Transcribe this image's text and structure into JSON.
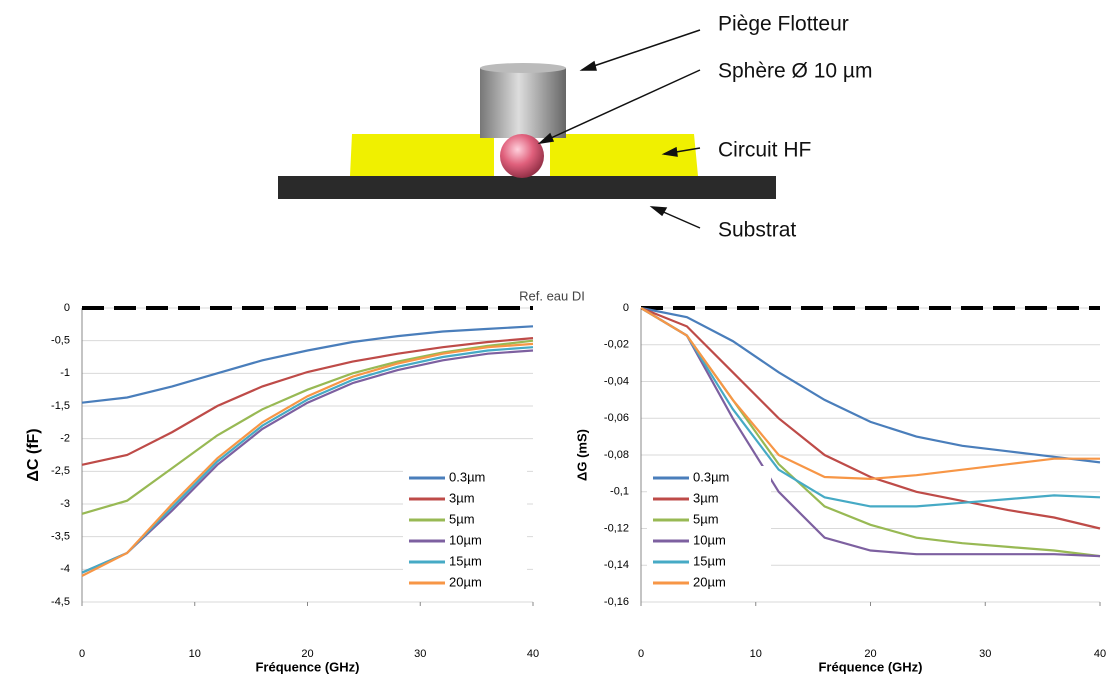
{
  "diagram": {
    "labels": [
      "Piège Flotteur",
      "Sphère Ø 10 µm",
      "Circuit HF",
      "Substrat"
    ]
  },
  "chart_data": [
    {
      "type": "line",
      "annotation": "Ref. eau DI",
      "xlabel": "Fréquence (GHz)",
      "ylabel": "ΔC  (fF)",
      "x": [
        0,
        4,
        8,
        12,
        16,
        20,
        24,
        28,
        32,
        36,
        40
      ],
      "xlim": [
        0,
        40
      ],
      "xticks": [
        0,
        10,
        20,
        30,
        40
      ],
      "ylim": [
        -4.5,
        0
      ],
      "yticks": [
        0,
        {
          "value": -0.5,
          "label": "-0,5"
        },
        -1,
        {
          "value": -1.5,
          "label": "-1,5"
        },
        -2,
        {
          "value": -2.5,
          "label": "-2,5"
        },
        -3,
        {
          "value": -3.5,
          "label": "-3,5"
        },
        -4,
        {
          "value": -4.5,
          "label": "-4,5"
        }
      ],
      "grid": true,
      "legend": "lower right",
      "series": [
        {
          "name": "0.3µm",
          "color": "#4a7ebb",
          "values": [
            -1.45,
            -1.37,
            -1.2,
            -1.0,
            -0.8,
            -0.65,
            -0.52,
            -0.43,
            -0.36,
            -0.32,
            -0.28
          ]
        },
        {
          "name": "3µm",
          "color": "#be4b48",
          "values": [
            -2.4,
            -2.25,
            -1.9,
            -1.5,
            -1.2,
            -0.98,
            -0.82,
            -0.7,
            -0.6,
            -0.52,
            -0.46
          ]
        },
        {
          "name": "5µm",
          "color": "#98b954",
          "values": [
            -3.15,
            -2.95,
            -2.45,
            -1.95,
            -1.55,
            -1.25,
            -1.0,
            -0.82,
            -0.68,
            -0.58,
            -0.5
          ]
        },
        {
          "name": "10µm",
          "color": "#7d60a0",
          "values": [
            -4.05,
            -3.75,
            -3.1,
            -2.4,
            -1.85,
            -1.45,
            -1.15,
            -0.95,
            -0.8,
            -0.7,
            -0.65
          ]
        },
        {
          "name": "15µm",
          "color": "#46aac5",
          "values": [
            -4.05,
            -3.75,
            -3.05,
            -2.35,
            -1.8,
            -1.4,
            -1.1,
            -0.9,
            -0.75,
            -0.65,
            -0.6
          ]
        },
        {
          "name": "20µm",
          "color": "#f79646",
          "values": [
            -4.1,
            -3.75,
            -3.0,
            -2.3,
            -1.75,
            -1.35,
            -1.05,
            -0.85,
            -0.7,
            -0.6,
            -0.55
          ]
        }
      ]
    },
    {
      "type": "line",
      "xlabel": "Fréquence (GHz)",
      "ylabel": "ΔG (mS)",
      "x": [
        0,
        4,
        8,
        12,
        16,
        20,
        24,
        28,
        32,
        36,
        40
      ],
      "xlim": [
        0,
        40
      ],
      "xticks": [
        0,
        10,
        20,
        30,
        40
      ],
      "ylim": [
        -0.16,
        0
      ],
      "yticks": [
        0,
        {
          "value": -0.02,
          "label": "-0,02"
        },
        {
          "value": -0.04,
          "label": "-0,04"
        },
        {
          "value": -0.06,
          "label": "-0,06"
        },
        {
          "value": -0.08,
          "label": "-0,08"
        },
        {
          "value": -0.1,
          "label": "-0,1"
        },
        {
          "value": -0.12,
          "label": "-0,12"
        },
        {
          "value": -0.14,
          "label": "-0,14"
        },
        {
          "value": -0.16,
          "label": "-0,16"
        }
      ],
      "grid": true,
      "legend": "lower left",
      "series": [
        {
          "name": "0.3µm",
          "color": "#4a7ebb",
          "values": [
            0,
            -0.005,
            -0.018,
            -0.035,
            -0.05,
            -0.062,
            -0.07,
            -0.075,
            -0.078,
            -0.081,
            -0.084
          ]
        },
        {
          "name": "3µm",
          "color": "#be4b48",
          "values": [
            0,
            -0.01,
            -0.035,
            -0.06,
            -0.08,
            -0.092,
            -0.1,
            -0.105,
            -0.11,
            -0.114,
            -0.12
          ]
        },
        {
          "name": "5µm",
          "color": "#98b954",
          "values": [
            0,
            -0.015,
            -0.05,
            -0.085,
            -0.108,
            -0.118,
            -0.125,
            -0.128,
            -0.13,
            -0.132,
            -0.135
          ]
        },
        {
          "name": "10µm",
          "color": "#7d60a0",
          "values": [
            0,
            -0.015,
            -0.06,
            -0.1,
            -0.125,
            -0.132,
            -0.134,
            -0.134,
            -0.134,
            -0.134,
            -0.135
          ]
        },
        {
          "name": "15µm",
          "color": "#46aac5",
          "values": [
            0,
            -0.015,
            -0.055,
            -0.088,
            -0.103,
            -0.108,
            -0.108,
            -0.106,
            -0.104,
            -0.102,
            -0.103
          ]
        },
        {
          "name": "20µm",
          "color": "#f79646",
          "values": [
            0,
            -0.015,
            -0.05,
            -0.08,
            -0.092,
            -0.093,
            -0.091,
            -0.088,
            -0.085,
            -0.082,
            -0.082
          ]
        }
      ]
    }
  ]
}
